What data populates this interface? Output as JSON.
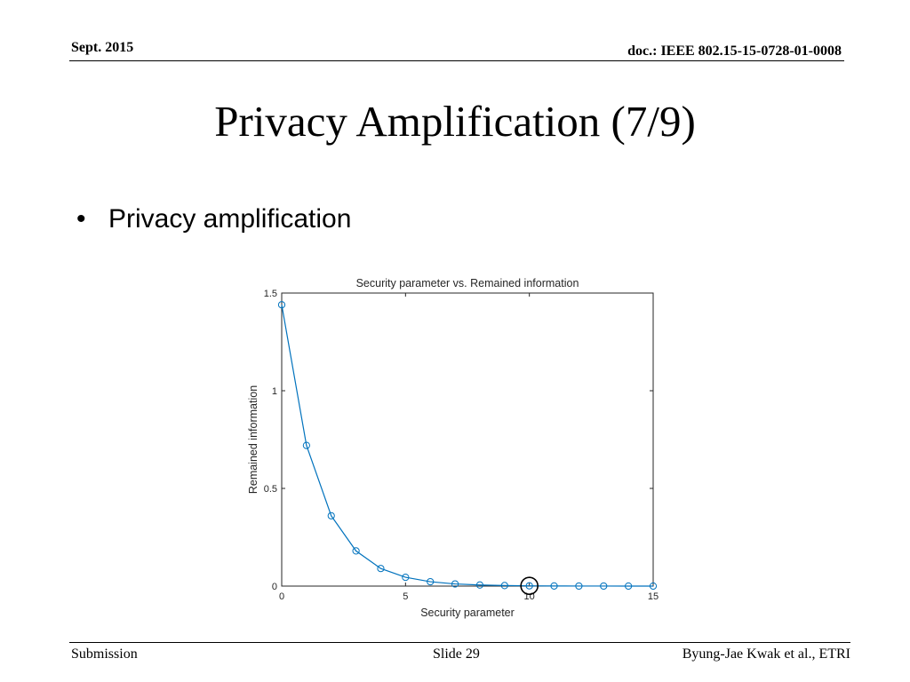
{
  "header": {
    "date": "Sept. 2015",
    "doc": "doc.: IEEE 802.15-15-0728-01-0008"
  },
  "slide": {
    "title": "Privacy Amplification (7/9)",
    "bullet_marker": "•",
    "bullet": "Privacy amplification"
  },
  "footer": {
    "left": "Submission",
    "center": "Slide 29",
    "right": "Byung-Jae Kwak et al., ETRI"
  },
  "chart_data": {
    "type": "line",
    "title": "Security parameter vs. Remained information",
    "xlabel": "Security parameter",
    "ylabel": "Remained information",
    "xlim": [
      0,
      15
    ],
    "ylim": [
      0,
      1.5
    ],
    "xticks": [
      0,
      5,
      10,
      15
    ],
    "yticks": [
      0,
      0.5,
      1,
      1.5
    ],
    "grid": false,
    "series": [
      {
        "x": [
          0,
          1,
          2,
          3,
          4,
          5,
          6,
          7,
          8,
          9,
          10,
          11,
          12,
          13,
          14,
          15
        ],
        "y": [
          1.44,
          0.72,
          0.36,
          0.18,
          0.09,
          0.045,
          0.0225,
          0.011,
          0.0056,
          0.0028,
          0.0014,
          0.0007,
          0.00035,
          0.00018,
          9e-05,
          4e-05
        ],
        "color": "#0072bd",
        "marker": "circle"
      }
    ],
    "highlight": {
      "x": 10,
      "y": 0.0014,
      "color": "#000000"
    }
  }
}
